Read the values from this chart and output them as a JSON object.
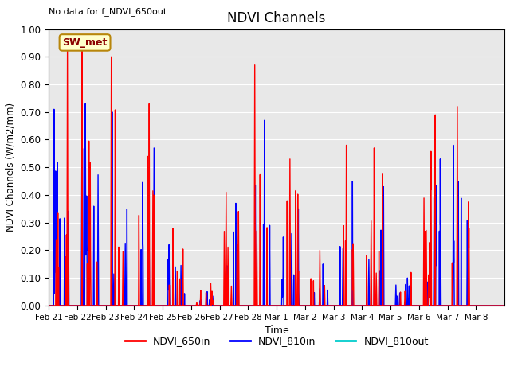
{
  "title": "NDVI Channels",
  "top_left_note": "No data for f_NDVI_650out",
  "sw_met_label": "SW_met",
  "ylabel": "NDVI Channels (W/m2/mm)",
  "xlabel": "Time",
  "ylim": [
    0.0,
    1.0
  ],
  "yticks": [
    0.0,
    0.1,
    0.2,
    0.3,
    0.4,
    0.5,
    0.6,
    0.7,
    0.8,
    0.9,
    1.0
  ],
  "color_650in": "#FF0000",
  "color_810in": "#0000FF",
  "color_810out": "#00CCCC",
  "xtick_labels": [
    "Feb 21",
    "Feb 22",
    "Feb 23",
    "Feb 24",
    "Feb 25",
    "Feb 26",
    "Feb 27",
    "Feb 28",
    "Mar 1",
    "Mar 2",
    "Mar 3",
    "Mar 4",
    "Mar 5",
    "Mar 6",
    "Mar 7",
    "Mar 8"
  ],
  "background_color": "#E8E8E8",
  "day_max_650in": [
    0.92,
    0.95,
    0.9,
    0.73,
    0.28,
    0.08,
    0.41,
    0.87,
    0.53,
    0.2,
    0.58,
    0.57,
    0.12,
    0.69,
    0.72,
    0.0
  ],
  "day_max_810in": [
    0.71,
    0.73,
    0.7,
    0.57,
    0.22,
    0.05,
    0.37,
    0.67,
    0.35,
    0.15,
    0.45,
    0.43,
    0.1,
    0.53,
    0.58,
    0.0
  ],
  "n_days": 16,
  "points_per_day": 200,
  "figsize": [
    6.4,
    4.8
  ],
  "dpi": 100
}
